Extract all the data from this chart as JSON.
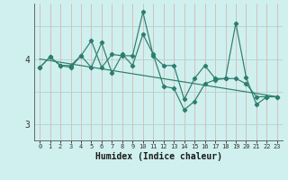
{
  "xlabel": "Humidex (Indice chaleur)",
  "bg_color": "#cff0ee",
  "line_color": "#2d7d6e",
  "grid_color_v": "#d4b8b8",
  "grid_color_h": "#b8cece",
  "x_ticks": [
    0,
    1,
    2,
    3,
    4,
    5,
    6,
    7,
    8,
    9,
    10,
    11,
    12,
    13,
    14,
    15,
    16,
    17,
    18,
    19,
    20,
    21,
    22,
    23
  ],
  "y_ticks": [
    3,
    4
  ],
  "ylim": [
    2.75,
    4.85
  ],
  "xlim": [
    -0.5,
    23.5
  ],
  "series1_x": [
    0,
    1,
    2,
    3,
    4,
    5,
    6,
    7,
    8,
    9,
    10,
    11,
    12,
    13,
    14,
    15,
    16,
    17,
    18,
    19,
    20,
    21,
    22,
    23
  ],
  "series1_y": [
    3.87,
    4.03,
    3.9,
    3.9,
    4.05,
    4.28,
    3.87,
    4.07,
    4.05,
    4.05,
    4.72,
    4.05,
    3.9,
    3.9,
    3.38,
    3.7,
    3.9,
    3.7,
    3.7,
    4.55,
    3.72,
    3.3,
    3.42,
    3.42
  ],
  "series2_x": [
    0,
    1,
    2,
    3,
    4,
    5,
    6,
    7,
    8,
    9,
    10,
    11,
    12,
    13,
    14,
    15,
    16,
    17,
    18,
    19,
    20,
    21,
    22,
    23
  ],
  "series2_y": [
    3.87,
    4.03,
    3.9,
    3.87,
    4.05,
    3.87,
    4.25,
    3.78,
    4.07,
    3.9,
    4.38,
    4.07,
    3.58,
    3.55,
    3.22,
    3.35,
    3.62,
    3.68,
    3.7,
    3.7,
    3.62,
    3.42,
    3.42,
    3.42
  ],
  "trend_x": [
    0,
    23
  ],
  "trend_y": [
    4.0,
    3.42
  ]
}
